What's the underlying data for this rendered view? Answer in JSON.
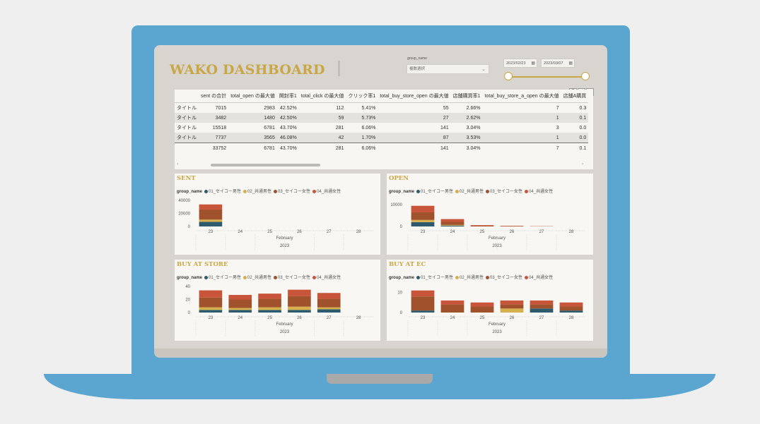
{
  "dashboard": {
    "title": "WAKO DASHBOARD"
  },
  "slicer": {
    "label": "group_name",
    "value": "複数選択"
  },
  "dates": {
    "start": "2023/02/23",
    "end": "2023/03/07"
  },
  "table": {
    "headers": [
      "",
      "sent の合計",
      "total_open の最大値",
      "開封率1",
      "total_click の最大値",
      "クリック率1",
      "total_buy_store_open の最大値",
      "店舗購買率1",
      "total_buy_store_a_open の最大値",
      "店舗A購買"
    ],
    "rows": [
      [
        "タイトル",
        "7015",
        "2983",
        "42.52%",
        "112",
        "5.41%",
        "55",
        "2.66%",
        "7",
        "0.3"
      ],
      [
        "タイトル",
        "3482",
        "1480",
        "42.50%",
        "59",
        "5.73%",
        "27",
        "2.62%",
        "1",
        "0.1"
      ],
      [
        "タイトル",
        "15518",
        "6781",
        "43.70%",
        "281",
        "6.06%",
        "141",
        "3.04%",
        "3",
        "0.0"
      ],
      [
        "タイトル",
        "7737",
        "3565",
        "46.08%",
        "42",
        "1.70%",
        "87",
        "3.53%",
        "1",
        "0.0"
      ]
    ],
    "total": [
      "",
      "33752",
      "6781",
      "43.70%",
      "281",
      "6.06%",
      "141",
      "3.04%",
      "7",
      "0.1"
    ]
  },
  "legend": {
    "label": "group_name",
    "items": [
      "01_セイコー男性",
      "02_共通男性",
      "03_セイコー女性",
      "04_共通女性"
    ],
    "colors": [
      "#2e5a6e",
      "#d6b04c",
      "#a0522d",
      "#c8553a"
    ]
  },
  "chart_data": [
    {
      "type": "bar",
      "title": "SENT",
      "categories": [
        "23",
        "24",
        "25",
        "26",
        "27",
        "28"
      ],
      "xlabel": "February",
      "xlabel2": "2023",
      "yticks": [
        "0",
        "20000",
        "40000"
      ],
      "ylim": [
        0,
        40000
      ],
      "series": [
        {
          "name": "01_セイコー男性",
          "values": [
            7015,
            0,
            0,
            0,
            0,
            0
          ]
        },
        {
          "name": "02_共通男性",
          "values": [
            3482,
            0,
            0,
            0,
            0,
            0
          ]
        },
        {
          "name": "03_セイコー女性",
          "values": [
            15518,
            0,
            0,
            0,
            0,
            0
          ]
        },
        {
          "name": "04_共通女性",
          "values": [
            7737,
            0,
            0,
            0,
            0,
            0
          ]
        }
      ]
    },
    {
      "type": "bar",
      "title": "OPEN",
      "categories": [
        "23",
        "24",
        "25",
        "26",
        "27",
        "28"
      ],
      "xlabel": "February",
      "xlabel2": "2023",
      "yticks": [
        "0",
        "10000"
      ],
      "ylim": [
        0,
        12000
      ],
      "series": [
        {
          "name": "01_セイコー男性",
          "values": [
            2000,
            400,
            0,
            0,
            0,
            0
          ]
        },
        {
          "name": "02_共通男性",
          "values": [
            1000,
            300,
            0,
            0,
            0,
            0
          ]
        },
        {
          "name": "03_セイコー女性",
          "values": [
            3500,
            1400,
            300,
            150,
            80,
            0
          ]
        },
        {
          "name": "04_共通女性",
          "values": [
            3000,
            1300,
            300,
            150,
            80,
            0
          ]
        }
      ]
    },
    {
      "type": "bar",
      "title": "BUY AT STORE",
      "categories": [
        "23",
        "24",
        "25",
        "26",
        "27",
        "28"
      ],
      "xlabel": "February",
      "xlabel2": "2023",
      "yticks": [
        "0",
        "20",
        "40"
      ],
      "ylim": [
        0,
        40
      ],
      "series": [
        {
          "name": "01_セイコー男性",
          "values": [
            4,
            4,
            4,
            4,
            5,
            0
          ]
        },
        {
          "name": "02_共通男性",
          "values": [
            4,
            3,
            4,
            5,
            3,
            0
          ]
        },
        {
          "name": "03_セイコー女性",
          "values": [
            15,
            13,
            13,
            16,
            13,
            0
          ]
        },
        {
          "name": "04_共通女性",
          "values": [
            11,
            7,
            8,
            10,
            9,
            0
          ]
        }
      ]
    },
    {
      "type": "bar",
      "title": "BUY AT EC",
      "categories": [
        "23",
        "24",
        "25",
        "26",
        "27",
        "28"
      ],
      "xlabel": "February",
      "xlabel2": "2023",
      "yticks": [
        "0",
        "10"
      ],
      "ylim": [
        0,
        13
      ],
      "series": [
        {
          "name": "01_セイコー男性",
          "values": [
            1,
            0,
            0,
            0,
            2,
            1
          ]
        },
        {
          "name": "02_共通男性",
          "values": [
            0,
            0,
            0,
            2,
            0,
            0
          ]
        },
        {
          "name": "03_セイコー女性",
          "values": [
            7,
            4,
            3,
            2,
            2,
            2
          ]
        },
        {
          "name": "04_共通女性",
          "values": [
            3,
            2,
            2,
            2,
            2,
            2
          ]
        }
      ]
    }
  ]
}
